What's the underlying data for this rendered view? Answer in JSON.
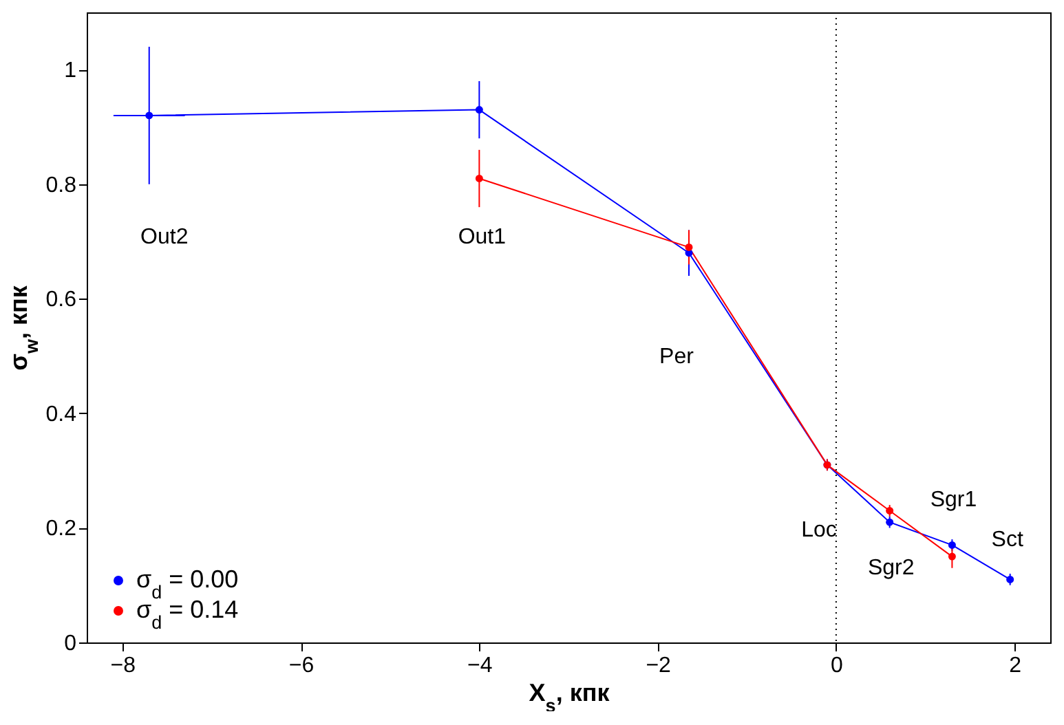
{
  "chart_data": {
    "type": "line",
    "xlabel": "X$_{s}$, кпк",
    "ylabel": "σ$_{w}$, кпк",
    "xlim": [
      -8.4,
      2.4
    ],
    "ylim": [
      0,
      1.1
    ],
    "xticks": [
      {
        "value": -8,
        "label": "−8"
      },
      {
        "value": -6,
        "label": "−6"
      },
      {
        "value": -4,
        "label": "−4"
      },
      {
        "value": -2,
        "label": "−2"
      },
      0,
      2
    ],
    "yticks": [
      0,
      0.2,
      0.4,
      0.6,
      0.8,
      1
    ],
    "series": [
      {
        "name": "σ$_{d}$ = 0.00",
        "color": "#0000ff",
        "x": [
          -7.7,
          -4.0,
          -1.65,
          -0.1,
          0.6,
          1.3,
          1.95
        ],
        "values": [
          0.92,
          0.93,
          0.68,
          0.31,
          0.21,
          0.17,
          0.11
        ],
        "errors": [
          0.12,
          0.05,
          0.04,
          0.01,
          0.01,
          0.01,
          0.01
        ],
        "xerrors": [
          0.4,
          null,
          null,
          null,
          null,
          null,
          null
        ]
      },
      {
        "name": "σ$_{d}$ = 0.14",
        "color": "#ff0000",
        "x": [
          -4.0,
          -1.65,
          -0.1,
          0.6,
          1.3
        ],
        "values": [
          0.81,
          0.69,
          0.31,
          0.23,
          0.15
        ],
        "errors": [
          0.05,
          0.03,
          0.01,
          0.01,
          0.02
        ]
      }
    ],
    "ref_lines": [
      {
        "axis": "x",
        "value": 0,
        "line_style": "dotted",
        "color": "#000000"
      }
    ],
    "annotations": [
      "Out2",
      "Out1",
      "Per",
      "Loc",
      "Sgr2",
      "Sgr1",
      "Sct"
    ],
    "legend": "bottom left",
    "marker": "circle",
    "line_style": "solid",
    "grid": false
  }
}
